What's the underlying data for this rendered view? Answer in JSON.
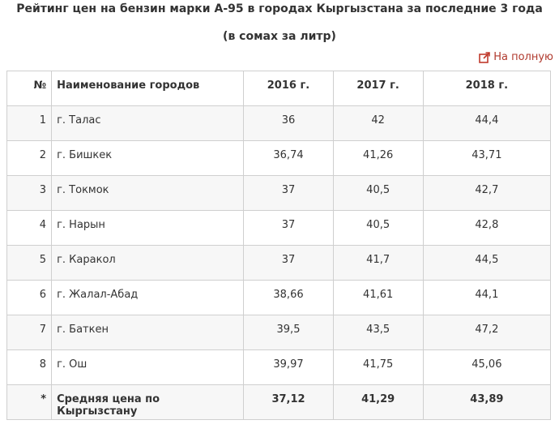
{
  "title": "Рейтинг цен на бензин марки А-95 в городах Кыргызстана за последние 3 года",
  "subtitle": "(в сомах за литр)",
  "fullscreen_link": {
    "label": "На полную",
    "icon": "external-link-icon",
    "color": "#c0392b"
  },
  "table": {
    "headers": {
      "num": "№",
      "city": "Наименование городов",
      "y2016": "2016 г.",
      "y2017": "2017 г.",
      "y2018": "2018 г."
    },
    "rows": [
      {
        "num": "1",
        "city": "г. Талас",
        "y2016": "36",
        "y2017": "42",
        "y2018": "44,4"
      },
      {
        "num": "2",
        "city": "г. Бишкек",
        "y2016": "36,74",
        "y2017": "41,26",
        "y2018": "43,71"
      },
      {
        "num": "3",
        "city": "г. Токмок",
        "y2016": "37",
        "y2017": "40,5",
        "y2018": "42,7"
      },
      {
        "num": "4",
        "city": "г. Нарын",
        "y2016": "37",
        "y2017": "40,5",
        "y2018": "42,8"
      },
      {
        "num": "5",
        "city": "г. Каракол",
        "y2016": "37",
        "y2017": "41,7",
        "y2018": "44,5"
      },
      {
        "num": "6",
        "city": "г. Жалал-Абад",
        "y2016": "38,66",
        "y2017": "41,61",
        "y2018": "44,1"
      },
      {
        "num": "7",
        "city": "г. Баткен",
        "y2016": "39,5",
        "y2017": "43,5",
        "y2018": "47,2"
      },
      {
        "num": "8",
        "city": "г. Ош",
        "y2016": "39,97",
        "y2017": "41,75",
        "y2018": "45,06"
      }
    ],
    "footer": {
      "num": "*",
      "city": "Средняя цена по Кыргызстану",
      "y2016": "37,12",
      "y2017": "41,29",
      "y2018": "43,89"
    }
  }
}
